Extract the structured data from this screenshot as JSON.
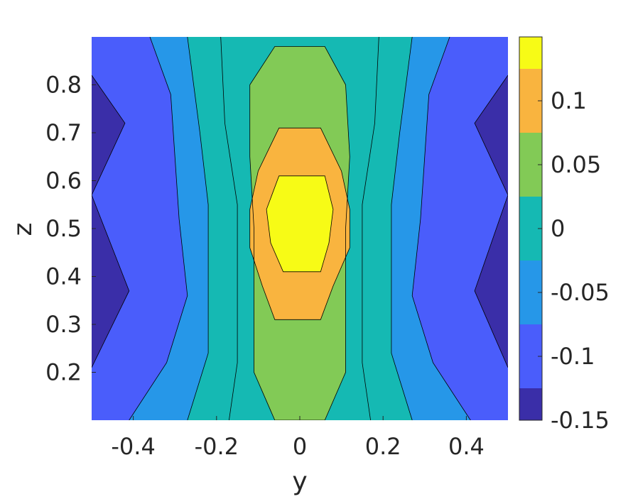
{
  "chart_data": {
    "type": "contour-filled",
    "title": "",
    "xlabel": "y",
    "ylabel": "z",
    "xlim": [
      -0.5,
      0.5
    ],
    "ylim": [
      0.1,
      0.9
    ],
    "xticks": [
      -0.4,
      -0.2,
      0,
      0.2,
      0.4
    ],
    "xtick_labels": [
      "-0.4",
      "-0.2",
      "0",
      "0.2",
      "0.4"
    ],
    "yticks": [
      0.2,
      0.3,
      0.4,
      0.5,
      0.6,
      0.7,
      0.8
    ],
    "ytick_labels": [
      "0.2",
      "0.3",
      "0.4",
      "0.5",
      "0.6",
      "0.7",
      "0.8"
    ],
    "colorbar": {
      "range": [
        -0.15,
        0.15
      ],
      "ticks": [
        -0.15,
        -0.1,
        -0.05,
        0,
        0.05,
        0.1
      ],
      "tick_labels": [
        "-0.15",
        "-0.1",
        "-0.05",
        "0",
        "0.05",
        "0.1"
      ],
      "colormap": "parula"
    },
    "levels": [
      {
        "name": "below -0.125",
        "color": "#3a2ea8"
      },
      {
        "name": "-0.125 to -0.075",
        "color": "#4a5dfb"
      },
      {
        "name": "-0.075 to -0.025",
        "color": "#2697e8"
      },
      {
        "name": "-0.025 to 0.025",
        "color": "#15b9b3"
      },
      {
        "name": "0.025 to 0.075",
        "color": "#82ca56"
      },
      {
        "name": "0.075 to 0.125",
        "color": "#f9b43f"
      },
      {
        "name": "above 0.125",
        "color": "#f7fb16"
      }
    ],
    "contours": [
      {
        "level": -0.125,
        "side": "left",
        "points": [
          [
            -0.5,
            0.21
          ],
          [
            -0.41,
            0.37
          ],
          [
            -0.5,
            0.57
          ]
        ]
      },
      {
        "level": -0.125,
        "side": "left-top",
        "points": [
          [
            -0.5,
            0.82
          ],
          [
            -0.42,
            0.72
          ],
          [
            -0.5,
            0.57
          ]
        ]
      },
      {
        "level": -0.125,
        "side": "right",
        "points": [
          [
            0.5,
            0.21
          ],
          [
            0.42,
            0.37
          ],
          [
            0.5,
            0.57
          ]
        ]
      },
      {
        "level": -0.125,
        "side": "right-top",
        "points": [
          [
            0.5,
            0.82
          ],
          [
            0.42,
            0.72
          ],
          [
            0.5,
            0.57
          ]
        ]
      },
      {
        "level": -0.075,
        "side": "left",
        "points": [
          [
            -0.41,
            0.1
          ],
          [
            -0.32,
            0.22
          ],
          [
            -0.27,
            0.36
          ],
          [
            -0.29,
            0.52
          ],
          [
            -0.3,
            0.65
          ],
          [
            -0.31,
            0.78
          ],
          [
            -0.36,
            0.9
          ]
        ]
      },
      {
        "level": -0.075,
        "side": "right",
        "points": [
          [
            0.41,
            0.1
          ],
          [
            0.32,
            0.22
          ],
          [
            0.27,
            0.36
          ],
          [
            0.29,
            0.52
          ],
          [
            0.3,
            0.65
          ],
          [
            0.31,
            0.78
          ],
          [
            0.36,
            0.9
          ]
        ]
      },
      {
        "level": -0.025,
        "side": "left",
        "points": [
          [
            -0.27,
            0.1
          ],
          [
            -0.22,
            0.24
          ],
          [
            -0.22,
            0.4
          ],
          [
            -0.22,
            0.55
          ],
          [
            -0.24,
            0.7
          ],
          [
            -0.27,
            0.9
          ]
        ]
      },
      {
        "level": -0.025,
        "side": "right",
        "points": [
          [
            0.27,
            0.1
          ],
          [
            0.22,
            0.24
          ],
          [
            0.22,
            0.4
          ],
          [
            0.22,
            0.55
          ],
          [
            0.24,
            0.7
          ],
          [
            0.27,
            0.9
          ]
        ]
      },
      {
        "level": 0.025,
        "side": "left",
        "points": [
          [
            -0.17,
            0.1
          ],
          [
            -0.15,
            0.22
          ],
          [
            -0.15,
            0.38
          ],
          [
            -0.15,
            0.55
          ],
          [
            -0.18,
            0.72
          ],
          [
            -0.19,
            0.9
          ]
        ]
      },
      {
        "level": 0.025,
        "side": "right",
        "points": [
          [
            0.17,
            0.1
          ],
          [
            0.15,
            0.22
          ],
          [
            0.15,
            0.38
          ],
          [
            0.15,
            0.55
          ],
          [
            0.18,
            0.72
          ],
          [
            0.19,
            0.9
          ]
        ]
      },
      {
        "level": 0.025,
        "side": "closed-inner",
        "points": [
          [
            -0.06,
            0.1
          ],
          [
            0.06,
            0.1
          ],
          [
            0.11,
            0.2
          ],
          [
            0.11,
            0.35
          ],
          [
            0.11,
            0.5
          ],
          [
            0.12,
            0.65
          ],
          [
            0.11,
            0.8
          ],
          [
            0.06,
            0.88
          ],
          [
            -0.06,
            0.88
          ],
          [
            -0.12,
            0.8
          ],
          [
            -0.12,
            0.65
          ],
          [
            -0.11,
            0.5
          ],
          [
            -0.11,
            0.35
          ],
          [
            -0.11,
            0.2
          ]
        ]
      },
      {
        "level": 0.075,
        "side": "closed",
        "points": [
          [
            -0.06,
            0.31
          ],
          [
            0.05,
            0.31
          ],
          [
            0.08,
            0.38
          ],
          [
            0.12,
            0.46
          ],
          [
            0.12,
            0.54
          ],
          [
            0.1,
            0.62
          ],
          [
            0.05,
            0.71
          ],
          [
            -0.05,
            0.71
          ],
          [
            -0.1,
            0.62
          ],
          [
            -0.12,
            0.54
          ],
          [
            -0.12,
            0.46
          ],
          [
            -0.09,
            0.38
          ]
        ]
      },
      {
        "level": 0.125,
        "side": "closed",
        "points": [
          [
            -0.04,
            0.41
          ],
          [
            0.05,
            0.41
          ],
          [
            0.07,
            0.47
          ],
          [
            0.08,
            0.54
          ],
          [
            0.06,
            0.61
          ],
          [
            -0.05,
            0.61
          ],
          [
            -0.08,
            0.54
          ],
          [
            -0.07,
            0.47
          ]
        ]
      }
    ]
  }
}
